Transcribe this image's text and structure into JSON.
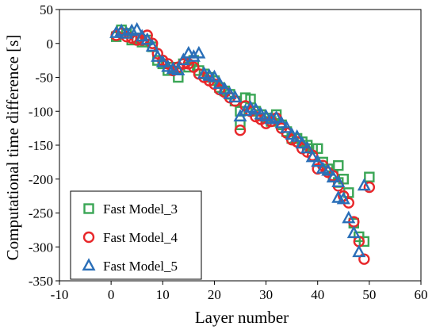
{
  "chart_data": {
    "type": "scatter",
    "title": "",
    "xlabel": "Layer number",
    "ylabel": "Computational time difference [s]",
    "xlim": [
      -10,
      60
    ],
    "ylim": [
      -350,
      50
    ],
    "xticks": [
      -10,
      0,
      10,
      20,
      30,
      40,
      50,
      60
    ],
    "yticks": [
      50,
      0,
      -50,
      -100,
      -150,
      -200,
      -250,
      -300,
      -350
    ],
    "grid": false,
    "legend_position": "bottom-left",
    "series": [
      {
        "name": "Fast Model_3",
        "marker": "square",
        "color": "#3aa655",
        "points": [
          [
            1,
            10
          ],
          [
            2,
            20
          ],
          [
            3,
            15
          ],
          [
            4,
            5
          ],
          [
            5,
            8
          ],
          [
            6,
            2
          ],
          [
            7,
            5
          ],
          [
            8,
            -5
          ],
          [
            9,
            -25
          ],
          [
            10,
            -30
          ],
          [
            11,
            -40
          ],
          [
            12,
            -35
          ],
          [
            13,
            -50
          ],
          [
            14,
            -30
          ],
          [
            15,
            -35
          ],
          [
            16,
            -25
          ],
          [
            17,
            -40
          ],
          [
            18,
            -45
          ],
          [
            19,
            -50
          ],
          [
            20,
            -55
          ],
          [
            21,
            -65
          ],
          [
            22,
            -70
          ],
          [
            23,
            -75
          ],
          [
            24,
            -85
          ],
          [
            25,
            -120
          ],
          [
            25,
            -100
          ],
          [
            26,
            -80
          ],
          [
            27,
            -82
          ],
          [
            28,
            -100
          ],
          [
            29,
            -105
          ],
          [
            30,
            -110
          ],
          [
            31,
            -115
          ],
          [
            32,
            -105
          ],
          [
            33,
            -120
          ],
          [
            34,
            -130
          ],
          [
            35,
            -140
          ],
          [
            36,
            -140
          ],
          [
            37,
            -145
          ],
          [
            38,
            -150
          ],
          [
            39,
            -155
          ],
          [
            40,
            -155
          ],
          [
            41,
            -175
          ],
          [
            42,
            -185
          ],
          [
            43,
            -195
          ],
          [
            44,
            -180
          ],
          [
            44,
            -205
          ],
          [
            45,
            -200
          ],
          [
            46,
            -220
          ],
          [
            47,
            -265
          ],
          [
            48,
            -285
          ],
          [
            49,
            -292
          ],
          [
            50,
            -197
          ]
        ]
      },
      {
        "name": "Fast Model_4",
        "marker": "circle",
        "color": "#e8272a",
        "points": [
          [
            1,
            12
          ],
          [
            2,
            15
          ],
          [
            3,
            10
          ],
          [
            4,
            8
          ],
          [
            5,
            5
          ],
          [
            6,
            5
          ],
          [
            7,
            12
          ],
          [
            8,
            0
          ],
          [
            9,
            -15
          ],
          [
            10,
            -25
          ],
          [
            11,
            -30
          ],
          [
            12,
            -40
          ],
          [
            13,
            -35
          ],
          [
            14,
            -30
          ],
          [
            15,
            -30
          ],
          [
            16,
            -35
          ],
          [
            17,
            -45
          ],
          [
            18,
            -50
          ],
          [
            19,
            -55
          ],
          [
            20,
            -60
          ],
          [
            21,
            -68
          ],
          [
            22,
            -72
          ],
          [
            23,
            -80
          ],
          [
            24,
            -85
          ],
          [
            25,
            -128
          ],
          [
            26,
            -92
          ],
          [
            27,
            -100
          ],
          [
            28,
            -108
          ],
          [
            29,
            -112
          ],
          [
            30,
            -118
          ],
          [
            31,
            -115
          ],
          [
            32,
            -110
          ],
          [
            33,
            -125
          ],
          [
            34,
            -132
          ],
          [
            35,
            -142
          ],
          [
            36,
            -145
          ],
          [
            37,
            -155
          ],
          [
            38,
            -160
          ],
          [
            39,
            -165
          ],
          [
            40,
            -185
          ],
          [
            41,
            -180
          ],
          [
            42,
            -190
          ],
          [
            43,
            -195
          ],
          [
            44,
            -210
          ],
          [
            45,
            -225
          ],
          [
            46,
            -235
          ],
          [
            47,
            -263
          ],
          [
            48,
            -292
          ],
          [
            49,
            -318
          ],
          [
            50,
            -212
          ]
        ]
      },
      {
        "name": "Fast Model_5",
        "marker": "triangle",
        "color": "#2a6fb8",
        "points": [
          [
            1,
            15
          ],
          [
            2,
            18
          ],
          [
            3,
            14
          ],
          [
            4,
            18
          ],
          [
            5,
            20
          ],
          [
            6,
            10
          ],
          [
            7,
            5
          ],
          [
            8,
            -5
          ],
          [
            9,
            -20
          ],
          [
            10,
            -28
          ],
          [
            11,
            -35
          ],
          [
            12,
            -38
          ],
          [
            13,
            -40
          ],
          [
            14,
            -25
          ],
          [
            15,
            -15
          ],
          [
            16,
            -20
          ],
          [
            17,
            -15
          ],
          [
            18,
            -45
          ],
          [
            19,
            -48
          ],
          [
            20,
            -50
          ],
          [
            21,
            -60
          ],
          [
            22,
            -68
          ],
          [
            23,
            -75
          ],
          [
            24,
            -80
          ],
          [
            25,
            -108
          ],
          [
            26,
            -100
          ],
          [
            27,
            -95
          ],
          [
            28,
            -98
          ],
          [
            29,
            -105
          ],
          [
            30,
            -108
          ],
          [
            31,
            -112
          ],
          [
            32,
            -110
          ],
          [
            33,
            -118
          ],
          [
            34,
            -125
          ],
          [
            35,
            -135
          ],
          [
            36,
            -138
          ],
          [
            37,
            -148
          ],
          [
            38,
            -155
          ],
          [
            39,
            -168
          ],
          [
            40,
            -175
          ],
          [
            41,
            -185
          ],
          [
            42,
            -188
          ],
          [
            43,
            -198
          ],
          [
            44,
            -205
          ],
          [
            44,
            -228
          ],
          [
            45,
            -230
          ],
          [
            46,
            -258
          ],
          [
            47,
            -280
          ],
          [
            48,
            -308
          ],
          [
            49,
            -210
          ]
        ]
      }
    ]
  }
}
